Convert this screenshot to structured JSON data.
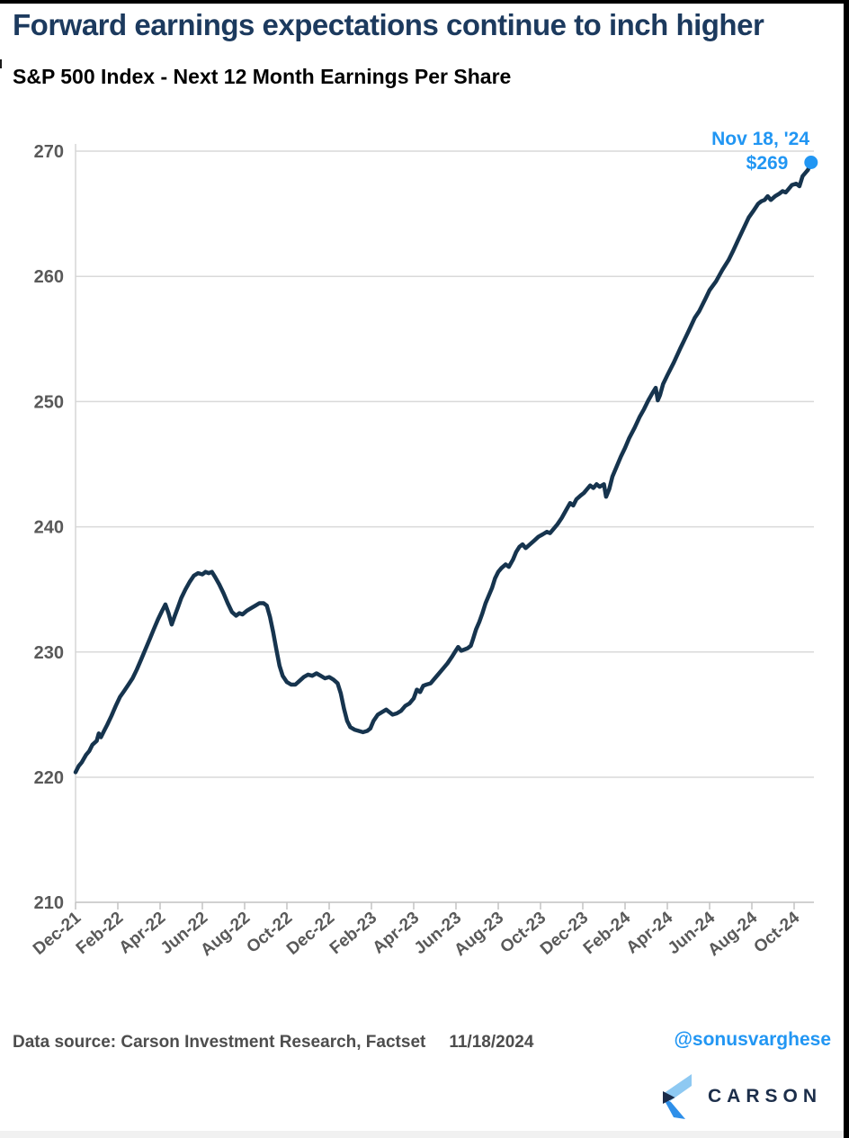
{
  "header": {
    "title": "Forward earnings expectations continue to inch higher",
    "subtitle": "S&P 500 Index - Next 12 Month Earnings Per Share"
  },
  "footer": {
    "source": "Data source: Carson Investment Research, Factset",
    "date": "11/18/2024",
    "handle": "@sonusvarghese",
    "logo_text": "CARSON"
  },
  "colors": {
    "title_navy": "#1c3a5e",
    "line_navy": "#16344e",
    "accent_blue": "#2196f3",
    "axis_label_gray": "#595959",
    "gridline_gray": "#d9d9d9",
    "axis_line_gray": "#c2c2c2",
    "footer_gray": "#4d4d4d",
    "logo_light_blue": "#8ec9f2",
    "logo_mid_blue": "#2e8fe9",
    "logo_navy": "#1b2b49"
  },
  "chart_data": {
    "type": "line",
    "title": "Forward earnings expectations continue to inch higher",
    "subtitle": "S&P 500 Index - Next 12 Month Earnings Per Share",
    "xlabel": "",
    "ylabel": "",
    "ylim": [
      210,
      270
    ],
    "yticks": [
      210,
      220,
      230,
      240,
      250,
      260,
      270
    ],
    "grid": "horizontal",
    "legend": "none",
    "x_unit": "months since Dec 2021",
    "categories": [
      "Dec-21",
      "Feb-22",
      "Apr-22",
      "Jun-22",
      "Aug-22",
      "Oct-22",
      "Dec-22",
      "Feb-23",
      "Apr-23",
      "Jun-23",
      "Aug-23",
      "Oct-23",
      "Dec-23",
      "Feb-24",
      "Apr-24",
      "Jun-24",
      "Aug-24",
      "Oct-24"
    ],
    "category_months": [
      0,
      2,
      4,
      6,
      8,
      10,
      12,
      14,
      16,
      18,
      20,
      22,
      24,
      26,
      28,
      30,
      32,
      34
    ],
    "series": [
      {
        "name": "S&P 500 Next 12 Month EPS",
        "color": "#16344e",
        "points": [
          [
            0,
            220.4
          ],
          [
            0.15,
            220.9
          ],
          [
            0.3,
            221.2
          ],
          [
            0.5,
            221.8
          ],
          [
            0.65,
            222.1
          ],
          [
            0.8,
            222.6
          ],
          [
            1,
            222.9
          ],
          [
            1.1,
            223.5
          ],
          [
            1.2,
            223.2
          ],
          [
            1.35,
            223.7
          ],
          [
            1.5,
            224.2
          ],
          [
            1.7,
            224.9
          ],
          [
            1.9,
            225.7
          ],
          [
            2.1,
            226.4
          ],
          [
            2.3,
            226.9
          ],
          [
            2.5,
            227.4
          ],
          [
            2.7,
            227.9
          ],
          [
            2.9,
            228.6
          ],
          [
            3.1,
            229.4
          ],
          [
            3.3,
            230.2
          ],
          [
            3.5,
            231
          ],
          [
            3.7,
            231.8
          ],
          [
            3.9,
            232.6
          ],
          [
            4.1,
            233.3
          ],
          [
            4.25,
            233.8
          ],
          [
            4.4,
            233.1
          ],
          [
            4.55,
            232.2
          ],
          [
            4.7,
            232.9
          ],
          [
            4.85,
            233.6
          ],
          [
            5,
            234.3
          ],
          [
            5.2,
            235
          ],
          [
            5.4,
            235.6
          ],
          [
            5.6,
            236.1
          ],
          [
            5.8,
            236.3
          ],
          [
            6,
            236.2
          ],
          [
            6.15,
            236.4
          ],
          [
            6.3,
            236.3
          ],
          [
            6.45,
            236.4
          ],
          [
            6.6,
            236
          ],
          [
            6.8,
            235.4
          ],
          [
            7,
            234.7
          ],
          [
            7.2,
            233.9
          ],
          [
            7.4,
            233.2
          ],
          [
            7.6,
            232.9
          ],
          [
            7.75,
            233.1
          ],
          [
            7.9,
            233
          ],
          [
            8.1,
            233.3
          ],
          [
            8.3,
            233.5
          ],
          [
            8.5,
            233.7
          ],
          [
            8.7,
            233.9
          ],
          [
            8.9,
            233.9
          ],
          [
            9.05,
            233.7
          ],
          [
            9.2,
            232.8
          ],
          [
            9.35,
            231.6
          ],
          [
            9.5,
            230.2
          ],
          [
            9.65,
            228.9
          ],
          [
            9.8,
            228.1
          ],
          [
            10,
            227.6
          ],
          [
            10.2,
            227.4
          ],
          [
            10.4,
            227.4
          ],
          [
            10.6,
            227.7
          ],
          [
            10.8,
            228
          ],
          [
            11,
            228.2
          ],
          [
            11.2,
            228.1
          ],
          [
            11.4,
            228.3
          ],
          [
            11.6,
            228.1
          ],
          [
            11.8,
            227.9
          ],
          [
            12,
            228
          ],
          [
            12.2,
            227.8
          ],
          [
            12.4,
            227.5
          ],
          [
            12.55,
            226.7
          ],
          [
            12.7,
            225.5
          ],
          [
            12.85,
            224.5
          ],
          [
            13,
            224
          ],
          [
            13.2,
            223.8
          ],
          [
            13.4,
            223.7
          ],
          [
            13.6,
            223.6
          ],
          [
            13.8,
            223.7
          ],
          [
            13.95,
            223.9
          ],
          [
            14.1,
            224.5
          ],
          [
            14.3,
            225
          ],
          [
            14.5,
            225.2
          ],
          [
            14.7,
            225.4
          ],
          [
            14.85,
            225.2
          ],
          [
            15,
            225
          ],
          [
            15.2,
            225.1
          ],
          [
            15.4,
            225.3
          ],
          [
            15.6,
            225.7
          ],
          [
            15.8,
            225.9
          ],
          [
            16,
            226.3
          ],
          [
            16.15,
            227
          ],
          [
            16.3,
            226.8
          ],
          [
            16.45,
            227.3
          ],
          [
            16.6,
            227.4
          ],
          [
            16.8,
            227.5
          ],
          [
            17,
            227.9
          ],
          [
            17.2,
            228.3
          ],
          [
            17.4,
            228.7
          ],
          [
            17.6,
            229.1
          ],
          [
            17.8,
            229.6
          ],
          [
            17.95,
            230
          ],
          [
            18.1,
            230.4
          ],
          [
            18.25,
            230.1
          ],
          [
            18.4,
            230.2
          ],
          [
            18.55,
            230.3
          ],
          [
            18.7,
            230.5
          ],
          [
            18.8,
            231
          ],
          [
            18.95,
            231.8
          ],
          [
            19.1,
            232.4
          ],
          [
            19.25,
            233.1
          ],
          [
            19.4,
            233.9
          ],
          [
            19.55,
            234.5
          ],
          [
            19.7,
            235.1
          ],
          [
            19.85,
            235.9
          ],
          [
            20,
            236.4
          ],
          [
            20.15,
            236.7
          ],
          [
            20.35,
            237
          ],
          [
            20.5,
            236.8
          ],
          [
            20.7,
            237.4
          ],
          [
            20.85,
            238
          ],
          [
            21,
            238.4
          ],
          [
            21.15,
            238.6
          ],
          [
            21.3,
            238.3
          ],
          [
            21.5,
            238.6
          ],
          [
            21.7,
            238.9
          ],
          [
            21.9,
            239.2
          ],
          [
            22.1,
            239.4
          ],
          [
            22.3,
            239.6
          ],
          [
            22.45,
            239.5
          ],
          [
            22.6,
            239.8
          ],
          [
            22.8,
            240.2
          ],
          [
            23,
            240.7
          ],
          [
            23.2,
            241.3
          ],
          [
            23.4,
            241.9
          ],
          [
            23.55,
            241.7
          ],
          [
            23.7,
            242.2
          ],
          [
            23.9,
            242.5
          ],
          [
            24.05,
            242.7
          ],
          [
            24.2,
            243
          ],
          [
            24.35,
            243.3
          ],
          [
            24.5,
            243.1
          ],
          [
            24.65,
            243.4
          ],
          [
            24.8,
            243.2
          ],
          [
            25,
            243.4
          ],
          [
            25.1,
            242.4
          ],
          [
            25.25,
            243
          ],
          [
            25.4,
            244
          ],
          [
            25.6,
            244.8
          ],
          [
            25.8,
            245.6
          ],
          [
            26,
            246.3
          ],
          [
            26.2,
            247.1
          ],
          [
            26.45,
            247.9
          ],
          [
            26.7,
            248.8
          ],
          [
            26.9,
            249.4
          ],
          [
            27.1,
            250.1
          ],
          [
            27.3,
            250.7
          ],
          [
            27.45,
            251.1
          ],
          [
            27.55,
            250.1
          ],
          [
            27.65,
            250.5
          ],
          [
            27.8,
            251.4
          ],
          [
            28,
            252.1
          ],
          [
            28.3,
            253.1
          ],
          [
            28.6,
            254.2
          ],
          [
            28.8,
            254.9
          ],
          [
            29,
            255.6
          ],
          [
            29.3,
            256.7
          ],
          [
            29.5,
            257.2
          ],
          [
            29.8,
            258.2
          ],
          [
            30,
            258.9
          ],
          [
            30.3,
            259.6
          ],
          [
            30.6,
            260.5
          ],
          [
            30.9,
            261.3
          ],
          [
            31.1,
            262
          ],
          [
            31.35,
            262.9
          ],
          [
            31.6,
            263.8
          ],
          [
            31.85,
            264.7
          ],
          [
            32.1,
            265.3
          ],
          [
            32.3,
            265.8
          ],
          [
            32.45,
            266
          ],
          [
            32.6,
            266.1
          ],
          [
            32.75,
            266.4
          ],
          [
            32.9,
            266.1
          ],
          [
            33.1,
            266.4
          ],
          [
            33.3,
            266.6
          ],
          [
            33.45,
            266.8
          ],
          [
            33.6,
            266.7
          ],
          [
            33.75,
            267
          ],
          [
            33.9,
            267.3
          ],
          [
            34.1,
            267.4
          ],
          [
            34.25,
            267.2
          ],
          [
            34.4,
            268
          ],
          [
            34.55,
            268.3
          ],
          [
            34.65,
            268.5
          ],
          [
            34.8,
            269.1
          ]
        ]
      }
    ],
    "end_point": {
      "x_month": 34.8,
      "value": 269.1,
      "marker_color": "#2196f3"
    },
    "annotation": {
      "line1": "Nov 18, '24",
      "line2": "$269",
      "color": "#2196f3"
    }
  }
}
